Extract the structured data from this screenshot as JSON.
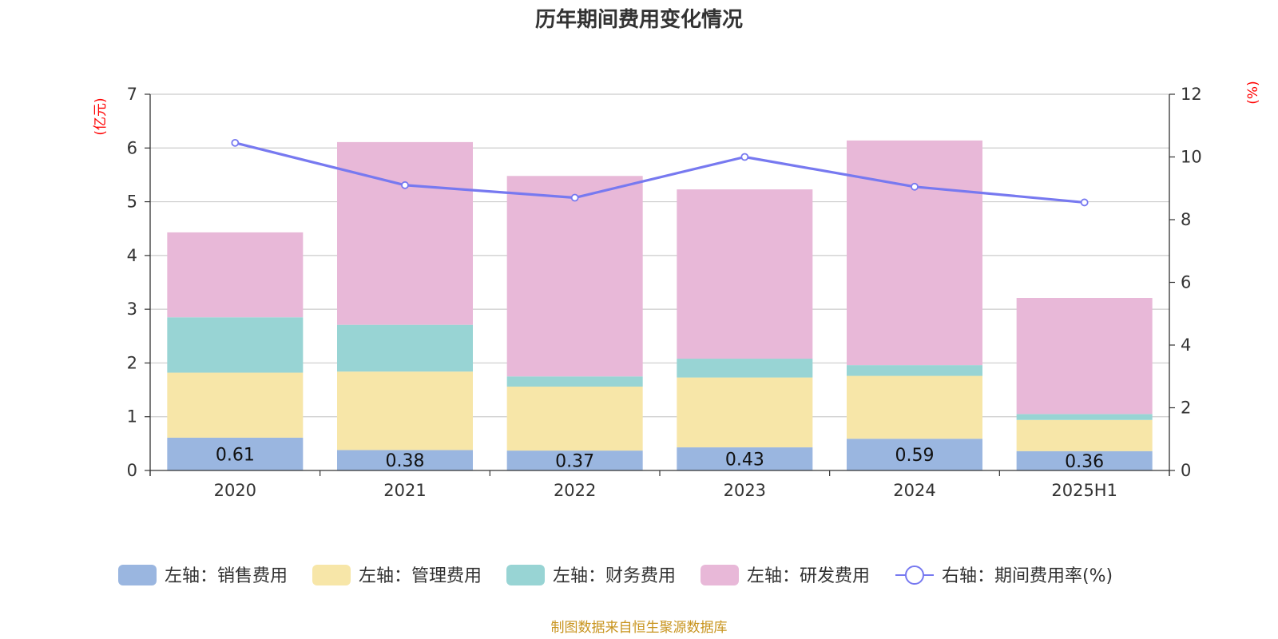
{
  "chart_data": {
    "type": "bar",
    "title": "历年期间费用变化情况",
    "categories": [
      "2020",
      "2021",
      "2022",
      "2023",
      "2024",
      "2025H1"
    ],
    "left_axis": {
      "unit": "(亿元)",
      "ylim": [
        0,
        7
      ],
      "ticks": [
        "0",
        "1",
        "2",
        "3",
        "4",
        "5",
        "6",
        "7"
      ]
    },
    "right_axis": {
      "unit": "(%)",
      "ylim": [
        0,
        12
      ],
      "ticks": [
        "0",
        "2",
        "4",
        "6",
        "8",
        "10",
        "12"
      ]
    },
    "grid": true,
    "series": [
      {
        "name": "左轴：销售费用",
        "type": "bar",
        "stack": true,
        "axis": "left",
        "color": "#9ab6e0",
        "values": [
          0.61,
          0.38,
          0.37,
          0.43,
          0.59,
          0.36
        ],
        "labels": [
          "0.61",
          "0.38",
          "0.37",
          "0.43",
          "0.59",
          "0.36"
        ]
      },
      {
        "name": "左轴：管理费用",
        "type": "bar",
        "stack": true,
        "axis": "left",
        "color": "#f7e6a8",
        "values": [
          1.21,
          1.46,
          1.19,
          1.3,
          1.17,
          0.58
        ]
      },
      {
        "name": "左轴：财务费用",
        "type": "bar",
        "stack": true,
        "axis": "left",
        "color": "#98d4d4",
        "values": [
          1.03,
          0.87,
          0.19,
          0.35,
          0.2,
          0.11
        ]
      },
      {
        "name": "左轴：研发费用",
        "type": "bar",
        "stack": true,
        "axis": "left",
        "color": "#e8b8d8",
        "values": [
          1.58,
          3.4,
          3.73,
          3.15,
          4.18,
          2.16
        ]
      },
      {
        "name": "右轴：期间费用率(%)",
        "type": "line",
        "axis": "right",
        "color": "#7779f0",
        "values": [
          10.45,
          9.1,
          8.7,
          10.0,
          9.05,
          8.55
        ]
      }
    ],
    "legend_position": "bottom",
    "source": "制图数据来自恒生聚源数据库"
  }
}
